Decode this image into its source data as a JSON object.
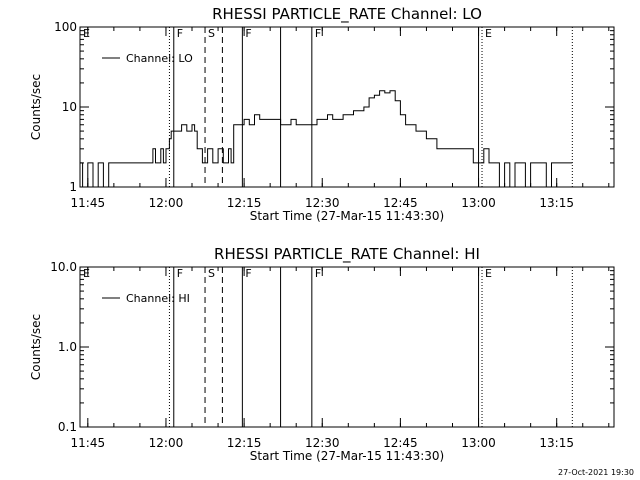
{
  "footer": {
    "timestamp": "27-Oct-2021 19:30"
  },
  "chart_data": [
    {
      "type": "line",
      "title": "RHESSI PARTICLE_RATE Channel: LO",
      "xlabel": "Start Time (27-Mar-15 11:43:30)",
      "ylabel": "Counts/sec",
      "y_scale": "log",
      "ylim": [
        1,
        100
      ],
      "y_ticks": [
        1,
        10,
        100
      ],
      "y_tick_labels": [
        "1",
        "10",
        "100"
      ],
      "xlim": [
        "11:43:30",
        "13:26:00"
      ],
      "x_ticks": [
        "11:45",
        "12:00",
        "12:15",
        "12:30",
        "12:45",
        "13:00",
        "13:15"
      ],
      "legend": {
        "label": "Channel: LO",
        "placement": "top-left"
      },
      "markers": [
        {
          "time": "11:43:30",
          "label": "E",
          "style": "dotted"
        },
        {
          "time": "12:00:40",
          "label": "",
          "style": "dotted"
        },
        {
          "time": "12:01:30",
          "label": "F",
          "style": "solid"
        },
        {
          "time": "12:07:30",
          "label": "S",
          "style": "dashed"
        },
        {
          "time": "12:10:50",
          "label": "",
          "style": "dashed"
        },
        {
          "time": "12:14:40",
          "label": "F",
          "style": "solid"
        },
        {
          "time": "12:22:00",
          "label": "",
          "style": "solid"
        },
        {
          "time": "12:28:00",
          "label": "F",
          "style": "solid"
        },
        {
          "time": "13:00:00",
          "label": "",
          "style": "solid"
        },
        {
          "time": "13:00:40",
          "label": "E",
          "style": "dotted"
        },
        {
          "time": "13:18:00",
          "label": "",
          "style": "dotted"
        }
      ],
      "series": [
        {
          "name": "Channel: LO",
          "x": [
            "11:43:30",
            "11:44:00",
            "11:45:00",
            "11:46:00",
            "11:47:00",
            "11:48:00",
            "11:49:00",
            "11:50:00",
            "11:51:00",
            "11:52:00",
            "11:53:00",
            "11:54:00",
            "11:55:00",
            "11:56:00",
            "11:57:00",
            "11:57:30",
            "11:58:00",
            "11:59:00",
            "11:59:30",
            "12:00:00",
            "12:00:40",
            "12:01:00",
            "12:02:00",
            "12:03:00",
            "12:04:00",
            "12:05:00",
            "12:05:30",
            "12:06:00",
            "12:07:00",
            "12:08:00",
            "12:09:00",
            "12:10:00",
            "12:11:00",
            "12:12:00",
            "12:12:30",
            "12:13:00",
            "12:14:00",
            "12:15:00",
            "12:16:00",
            "12:17:00",
            "12:18:00",
            "12:19:00",
            "12:20:00",
            "12:21:00",
            "12:22:00",
            "12:23:00",
            "12:24:00",
            "12:25:00",
            "12:26:00",
            "12:27:00",
            "12:28:00",
            "12:29:00",
            "12:30:00",
            "12:31:00",
            "12:32:00",
            "12:33:00",
            "12:34:00",
            "12:35:00",
            "12:36:00",
            "12:37:00",
            "12:38:00",
            "12:39:00",
            "12:40:00",
            "12:41:00",
            "12:42:00",
            "12:43:00",
            "12:44:00",
            "12:45:00",
            "12:46:00",
            "12:47:00",
            "12:48:00",
            "12:49:00",
            "12:50:00",
            "12:51:00",
            "12:52:00",
            "12:53:00",
            "12:54:00",
            "12:55:00",
            "12:56:00",
            "12:57:00",
            "12:58:00",
            "12:59:00",
            "13:00:00",
            "13:01:00",
            "13:02:00",
            "13:03:00",
            "13:04:00",
            "13:05:00",
            "13:06:00",
            "13:07:00",
            "13:08:00",
            "13:09:00",
            "13:10:00",
            "13:11:00",
            "13:12:00",
            "13:13:00",
            "13:14:00",
            "13:15:00",
            "13:16:00",
            "13:17:00",
            "13:18:00"
          ],
          "y": [
            2,
            1,
            2,
            1,
            2,
            1,
            2,
            2,
            2,
            2,
            2,
            2,
            2,
            2,
            2,
            3,
            2,
            3,
            2,
            3,
            4,
            5,
            5,
            6,
            5,
            6,
            5,
            3,
            2,
            3,
            2,
            3,
            2,
            3,
            2,
            6,
            6,
            7,
            6,
            8,
            7,
            7,
            7,
            7,
            6,
            6,
            7,
            6,
            6,
            6,
            6,
            7,
            7,
            8,
            7,
            7,
            8,
            8,
            9,
            9,
            10,
            13,
            14,
            16,
            15,
            16,
            12,
            8,
            6,
            6,
            5,
            5,
            4,
            4,
            3,
            3,
            3,
            3,
            3,
            3,
            3,
            2,
            2,
            3,
            2,
            2,
            1,
            2,
            1,
            2,
            2,
            1,
            2,
            2,
            2,
            1,
            2,
            2,
            2,
            2,
            2
          ]
        }
      ]
    },
    {
      "type": "line",
      "title": "RHESSI PARTICLE_RATE Channel: HI",
      "xlabel": "Start Time (27-Mar-15 11:43:30)",
      "ylabel": "Counts/sec",
      "y_scale": "log",
      "ylim": [
        0.1,
        10
      ],
      "y_ticks": [
        0.1,
        1,
        10
      ],
      "y_tick_labels": [
        "0.1",
        "1.0",
        "10.0"
      ],
      "xlim": [
        "11:43:30",
        "13:26:00"
      ],
      "x_ticks": [
        "11:45",
        "12:00",
        "12:15",
        "12:30",
        "12:45",
        "13:00",
        "13:15"
      ],
      "legend": {
        "label": "Channel: HI",
        "placement": "top-left"
      },
      "markers": [
        {
          "time": "11:43:30",
          "label": "E",
          "style": "dotted"
        },
        {
          "time": "12:00:40",
          "label": "",
          "style": "dotted"
        },
        {
          "time": "12:01:30",
          "label": "F",
          "style": "solid"
        },
        {
          "time": "12:07:30",
          "label": "S",
          "style": "dashed"
        },
        {
          "time": "12:10:50",
          "label": "",
          "style": "dashed"
        },
        {
          "time": "12:14:40",
          "label": "F",
          "style": "solid"
        },
        {
          "time": "12:22:00",
          "label": "",
          "style": "solid"
        },
        {
          "time": "12:28:00",
          "label": "F",
          "style": "solid"
        },
        {
          "time": "13:00:00",
          "label": "",
          "style": "solid"
        },
        {
          "time": "13:00:40",
          "label": "E",
          "style": "dotted"
        },
        {
          "time": "13:18:00",
          "label": "",
          "style": "dotted"
        }
      ],
      "series": [
        {
          "name": "Channel: HI",
          "x": [],
          "y": []
        }
      ]
    }
  ]
}
